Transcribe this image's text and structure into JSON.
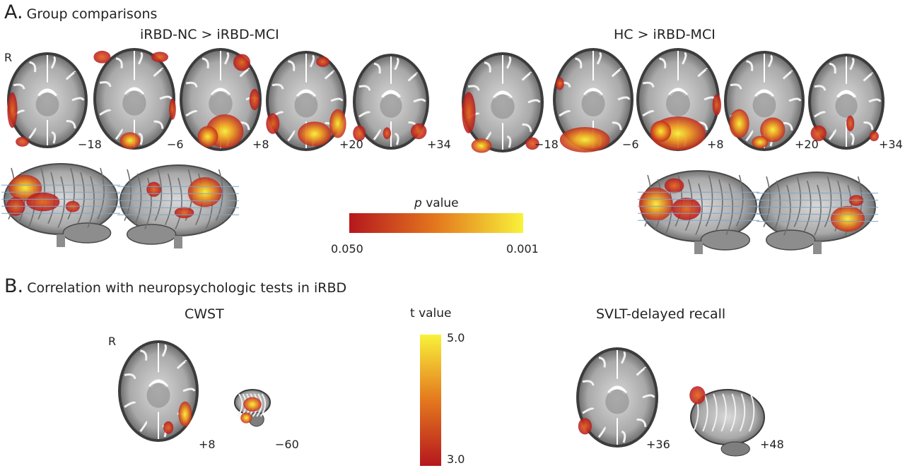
{
  "panelA": {
    "letter": "A.",
    "title": "Group comparisons",
    "orientation_label": "R",
    "left_group": {
      "title": "iRBD-NC > iRBD-MCI",
      "slices": [
        "−18",
        "−6",
        "+8",
        "+20",
        "+34"
      ]
    },
    "right_group": {
      "title": "HC > iRBD-MCI",
      "slices": [
        "−18",
        "−6",
        "+8",
        "+20",
        "+34"
      ]
    },
    "colorbar": {
      "label_italic": "p",
      "label_rest": " value",
      "min_label": "0.050",
      "max_label": "0.001",
      "color_low": "#b5171e",
      "color_mid": "#e4781e",
      "color_high": "#f8f23a"
    }
  },
  "panelB": {
    "letter": "B.",
    "title": "Correlation with neuropsychologic tests in iRBD",
    "orientation_label": "R",
    "left_test": {
      "title": "CWST",
      "slices": [
        "+8",
        "−60"
      ]
    },
    "right_test": {
      "title": "SVLT-delayed recall",
      "slices": [
        "+36",
        "+48"
      ]
    },
    "colorbar": {
      "label": "t value",
      "max_label": "5.0",
      "min_label": "3.0"
    }
  }
}
